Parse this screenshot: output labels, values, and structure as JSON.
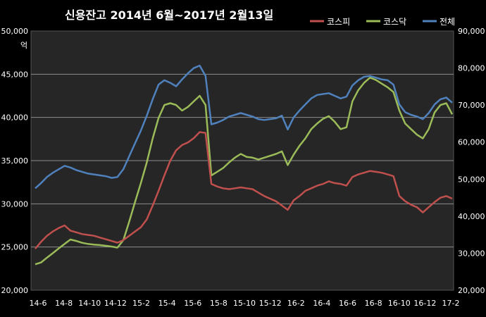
{
  "chart_data": {
    "type": "line",
    "title": "신용잔고  2014년 6월~2017년 2월13일",
    "left_axis": {
      "unit": "억",
      "ylim": [
        20000,
        50000
      ],
      "ticks": [
        20000,
        25000,
        30000,
        35000,
        40000,
        45000,
        50000
      ],
      "tick_labels": [
        "20,000",
        "25,000",
        "30,000",
        "35,000",
        "40,000",
        "45,000",
        "50,000"
      ]
    },
    "right_axis": {
      "ylim": [
        20000,
        90000
      ],
      "ticks": [
        20000,
        30000,
        40000,
        50000,
        60000,
        70000,
        80000,
        90000
      ],
      "tick_labels": [
        "20,000",
        "30,000",
        "40,000",
        "50,000",
        "60,000",
        "70,000",
        "80,000",
        "90,000"
      ]
    },
    "x_tick_labels": [
      "14-6",
      "14-8",
      "14-10",
      "14-12",
      "15-2",
      "15-4",
      "15-6",
      "15-8",
      "15-10",
      "15-12",
      "16-2",
      "16-4",
      "16-6",
      "16-8",
      "16-10",
      "16-12",
      "17-2"
    ],
    "legend_position": "top-right",
    "grid": true,
    "series": [
      {
        "name": "코스피",
        "axis": "left",
        "color": "#c0504d",
        "values": [
          24800,
          25600,
          26300,
          26800,
          27200,
          27500,
          26900,
          26700,
          26500,
          26400,
          26300,
          26100,
          25900,
          25700,
          25500,
          25800,
          26300,
          26800,
          27300,
          28200,
          29800,
          31500,
          33300,
          35000,
          36200,
          36800,
          37100,
          37600,
          38300,
          38200,
          32300,
          32000,
          31800,
          31700,
          31800,
          31900,
          31800,
          31700,
          31300,
          30900,
          30600,
          30300,
          29800,
          29300,
          30400,
          30900,
          31500,
          31800,
          32100,
          32300,
          32600,
          32400,
          32300,
          32100,
          33100,
          33400,
          33600,
          33800,
          33700,
          33600,
          33400,
          33200,
          30900,
          30300,
          29900,
          29600,
          29000,
          29600,
          30200,
          30700,
          30900,
          30600
        ]
      },
      {
        "name": "코스닥",
        "axis": "right",
        "color": "#9bbb59",
        "values": [
          27000,
          27500,
          28800,
          30000,
          31300,
          32500,
          33700,
          33300,
          32800,
          32500,
          32300,
          32200,
          32000,
          31800,
          31500,
          33500,
          38500,
          43800,
          49000,
          54500,
          61000,
          66500,
          70000,
          70500,
          70000,
          68500,
          69500,
          71000,
          72500,
          70000,
          51000,
          52000,
          53000,
          54500,
          55800,
          56800,
          56000,
          55800,
          55300,
          55800,
          56300,
          56800,
          57500,
          53800,
          56600,
          59000,
          61000,
          63500,
          65000,
          66300,
          67000,
          65500,
          63500,
          64000,
          71000,
          74000,
          76000,
          77400,
          76800,
          75800,
          74800,
          73500,
          68500,
          65000,
          63500,
          62000,
          61000,
          63500,
          68000,
          70000,
          70500,
          67500
        ]
      },
      {
        "name": "전체",
        "axis": "left",
        "color": "#4f81bd",
        "values": [
          31800,
          32400,
          33100,
          33600,
          34000,
          34400,
          34200,
          33900,
          33700,
          33500,
          33400,
          33300,
          33200,
          33000,
          33100,
          34000,
          35500,
          37000,
          38500,
          40200,
          42100,
          43800,
          44300,
          44000,
          43600,
          44400,
          45100,
          45700,
          46000,
          44800,
          39200,
          39400,
          39700,
          40100,
          40300,
          40500,
          40300,
          40100,
          39800,
          39700,
          39800,
          39900,
          40200,
          38600,
          40000,
          40800,
          41500,
          42200,
          42600,
          42700,
          42800,
          42500,
          42200,
          42400,
          43700,
          44300,
          44700,
          44800,
          44600,
          44400,
          44300,
          43800,
          41500,
          40600,
          40300,
          40100,
          39800,
          40500,
          41500,
          42100,
          42300,
          41700
        ]
      }
    ]
  }
}
